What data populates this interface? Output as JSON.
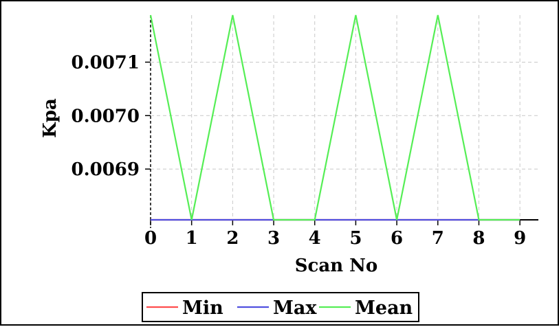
{
  "chart_data": {
    "type": "line",
    "xlabel": "Scan No",
    "ylabel": "Kpa",
    "x": [
      0,
      1,
      2,
      3,
      4,
      5,
      6,
      7,
      8,
      9
    ],
    "x_ticks": [
      "0",
      "1",
      "2",
      "3",
      "4",
      "5",
      "6",
      "7",
      "8",
      "9"
    ],
    "y_ticks": [
      "0.0069",
      "0.0070",
      "0.0071"
    ],
    "y_tick_values": [
      0.0069,
      0.007,
      0.0071
    ],
    "xlim": [
      0,
      9.45
    ],
    "ylim": [
      0.006805,
      0.007188
    ],
    "grid": true,
    "legend_position": "bottom-center",
    "series": [
      {
        "name": "Min",
        "color": "#ff4d4d",
        "values": [
          0.006805,
          0.006805,
          0.006805,
          0.006805,
          0.006805,
          0.006805,
          0.006805,
          0.006805,
          0.006805,
          0.006805
        ]
      },
      {
        "name": "Max",
        "color": "#5050e0",
        "values": [
          0.006805,
          0.006805,
          0.006805,
          0.006805,
          0.006805,
          0.006805,
          0.006805,
          0.006805,
          0.006805,
          0.006805
        ]
      },
      {
        "name": "Mean",
        "color": "#55ee55",
        "values": [
          0.007188,
          0.006805,
          0.007188,
          0.006805,
          0.006805,
          0.007188,
          0.006805,
          0.007188,
          0.006805,
          0.006805
        ]
      }
    ]
  }
}
